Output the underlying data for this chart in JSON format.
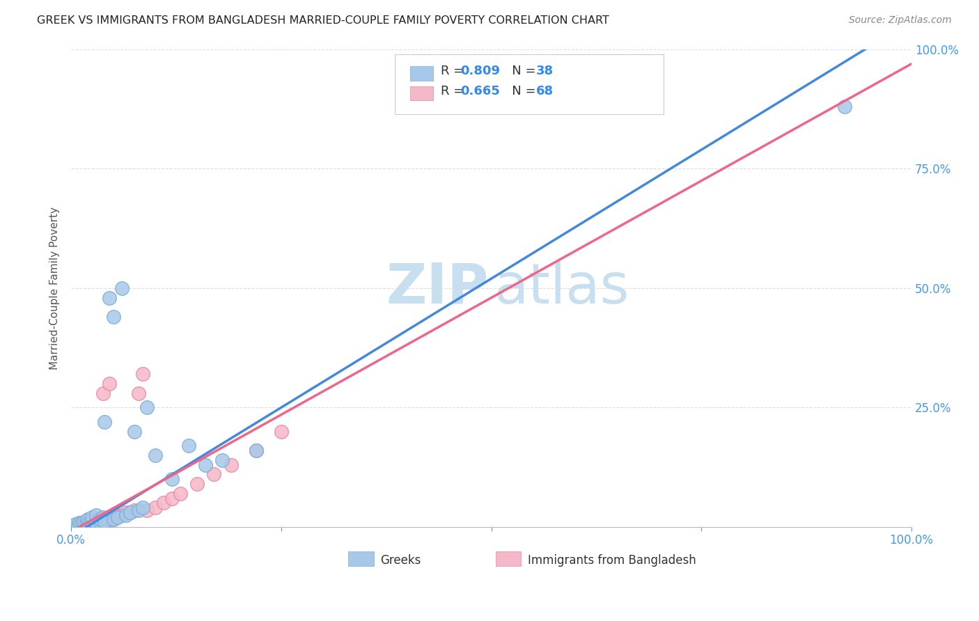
{
  "title": "GREEK VS IMMIGRANTS FROM BANGLADESH MARRIED-COUPLE FAMILY POVERTY CORRELATION CHART",
  "source": "Source: ZipAtlas.com",
  "ylabel": "Married-Couple Family Poverty",
  "xlim": [
    0,
    1.0
  ],
  "ylim": [
    0,
    1.0
  ],
  "color_greek": "#a8c8ea",
  "color_greek_edge": "#7aafd4",
  "color_bangladesh": "#f5b8c8",
  "color_bangladesh_edge": "#e888a0",
  "line_color_greek": "#4488dd",
  "line_color_bangladesh": "#ee6688",
  "watermark_zip_color": "#c8dff0",
  "watermark_atlas_color": "#c8dff0",
  "background_color": "#ffffff",
  "grid_color": "#dddddd",
  "tick_label_color": "#4499ee",
  "ylabel_color": "#555555",
  "legend_text_color": "#333333",
  "legend_num_color": "#3388ee",
  "slope_greek": 1.08,
  "intercept_greek": -0.02,
  "slope_bd": 0.98,
  "intercept_bd": -0.01,
  "greek_scatter_x": [
    0.005,
    0.008,
    0.01,
    0.012,
    0.015,
    0.015,
    0.018,
    0.02,
    0.02,
    0.022,
    0.025,
    0.025,
    0.03,
    0.03,
    0.03,
    0.035,
    0.035,
    0.038,
    0.04,
    0.04,
    0.045,
    0.05,
    0.05,
    0.055,
    0.06,
    0.065,
    0.07,
    0.075,
    0.08,
    0.085,
    0.09,
    0.1,
    0.12,
    0.14,
    0.16,
    0.18,
    0.22,
    0.92
  ],
  "greek_scatter_y": [
    0.005,
    0.003,
    0.008,
    0.007,
    0.005,
    0.01,
    0.008,
    0.005,
    0.015,
    0.01,
    0.008,
    0.02,
    0.005,
    0.01,
    0.025,
    0.008,
    0.015,
    0.02,
    0.22,
    0.01,
    0.48,
    0.015,
    0.44,
    0.02,
    0.5,
    0.025,
    0.03,
    0.2,
    0.035,
    0.04,
    0.25,
    0.15,
    0.1,
    0.17,
    0.13,
    0.14,
    0.16,
    0.88
  ],
  "bangladesh_scatter_x": [
    0.003,
    0.005,
    0.006,
    0.007,
    0.008,
    0.009,
    0.01,
    0.01,
    0.012,
    0.013,
    0.014,
    0.015,
    0.015,
    0.015,
    0.016,
    0.017,
    0.018,
    0.018,
    0.019,
    0.02,
    0.02,
    0.02,
    0.021,
    0.022,
    0.023,
    0.024,
    0.025,
    0.025,
    0.026,
    0.027,
    0.028,
    0.03,
    0.03,
    0.03,
    0.031,
    0.032,
    0.033,
    0.034,
    0.035,
    0.035,
    0.036,
    0.038,
    0.04,
    0.04,
    0.042,
    0.045,
    0.045,
    0.048,
    0.05,
    0.05,
    0.052,
    0.055,
    0.06,
    0.065,
    0.07,
    0.075,
    0.08,
    0.085,
    0.09,
    0.1,
    0.11,
    0.12,
    0.13,
    0.15,
    0.17,
    0.19,
    0.22,
    0.25
  ],
  "bangladesh_scatter_y": [
    0.002,
    0.003,
    0.004,
    0.003,
    0.005,
    0.004,
    0.003,
    0.008,
    0.005,
    0.006,
    0.004,
    0.003,
    0.007,
    0.01,
    0.005,
    0.008,
    0.006,
    0.012,
    0.007,
    0.005,
    0.009,
    0.015,
    0.007,
    0.008,
    0.01,
    0.006,
    0.005,
    0.012,
    0.008,
    0.01,
    0.007,
    0.006,
    0.009,
    0.015,
    0.008,
    0.012,
    0.01,
    0.014,
    0.008,
    0.018,
    0.01,
    0.28,
    0.015,
    0.012,
    0.018,
    0.016,
    0.3,
    0.015,
    0.02,
    0.016,
    0.019,
    0.025,
    0.025,
    0.03,
    0.03,
    0.035,
    0.28,
    0.32,
    0.035,
    0.04,
    0.05,
    0.06,
    0.07,
    0.09,
    0.11,
    0.13,
    0.16,
    0.2
  ]
}
